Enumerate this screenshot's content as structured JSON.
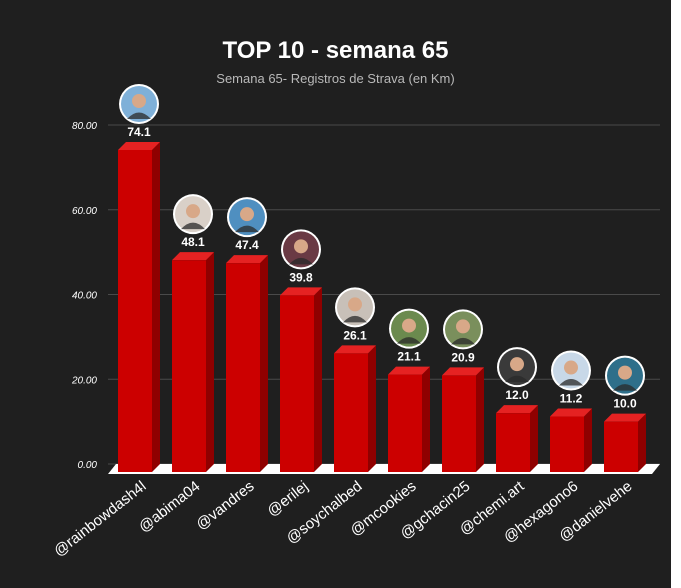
{
  "colors": {
    "background": "#1f1f1f",
    "bar_front": "#cc0000",
    "bar_side": "#8f0000",
    "bar_top": "#e52222",
    "grid": "#4a4a4a",
    "floor": "#ffffff",
    "text": "#ffffff"
  },
  "chart_data": {
    "type": "bar",
    "title": "TOP 10 - semana 65",
    "subtitle": "Semana 65- Registros de Strava (en Km)",
    "xlabel": "",
    "ylabel": "",
    "ylim": [
      0,
      80
    ],
    "yticks": [
      "0.00",
      "20.00",
      "40.00",
      "60.00",
      "80.00"
    ],
    "grid": true,
    "legend": "none",
    "categories": [
      "@rainbowdash4l",
      "@abima04",
      "@vandres",
      "@erilej",
      "@soychalbed",
      "@mcookies",
      "@gchacin25",
      "@chemi.art",
      "@hexagono6",
      "@danielvehe"
    ],
    "values": [
      74.1,
      48.1,
      47.4,
      39.8,
      26.1,
      21.1,
      20.9,
      12.0,
      11.2,
      10.0
    ],
    "data_labels": [
      "74.1",
      "48.1",
      "47.4",
      "39.8",
      "26.1",
      "21.1",
      "20.9",
      "12.0",
      "11.2",
      "10.0"
    ],
    "avatar_colors": [
      "#7fb0d8",
      "#d9d0c8",
      "#4f8fc0",
      "#6a3a44",
      "#c8c0b8",
      "#6b8a4e",
      "#7a8f5c",
      "#3a3a3a",
      "#c8d8e8",
      "#2e6f8a"
    ]
  }
}
